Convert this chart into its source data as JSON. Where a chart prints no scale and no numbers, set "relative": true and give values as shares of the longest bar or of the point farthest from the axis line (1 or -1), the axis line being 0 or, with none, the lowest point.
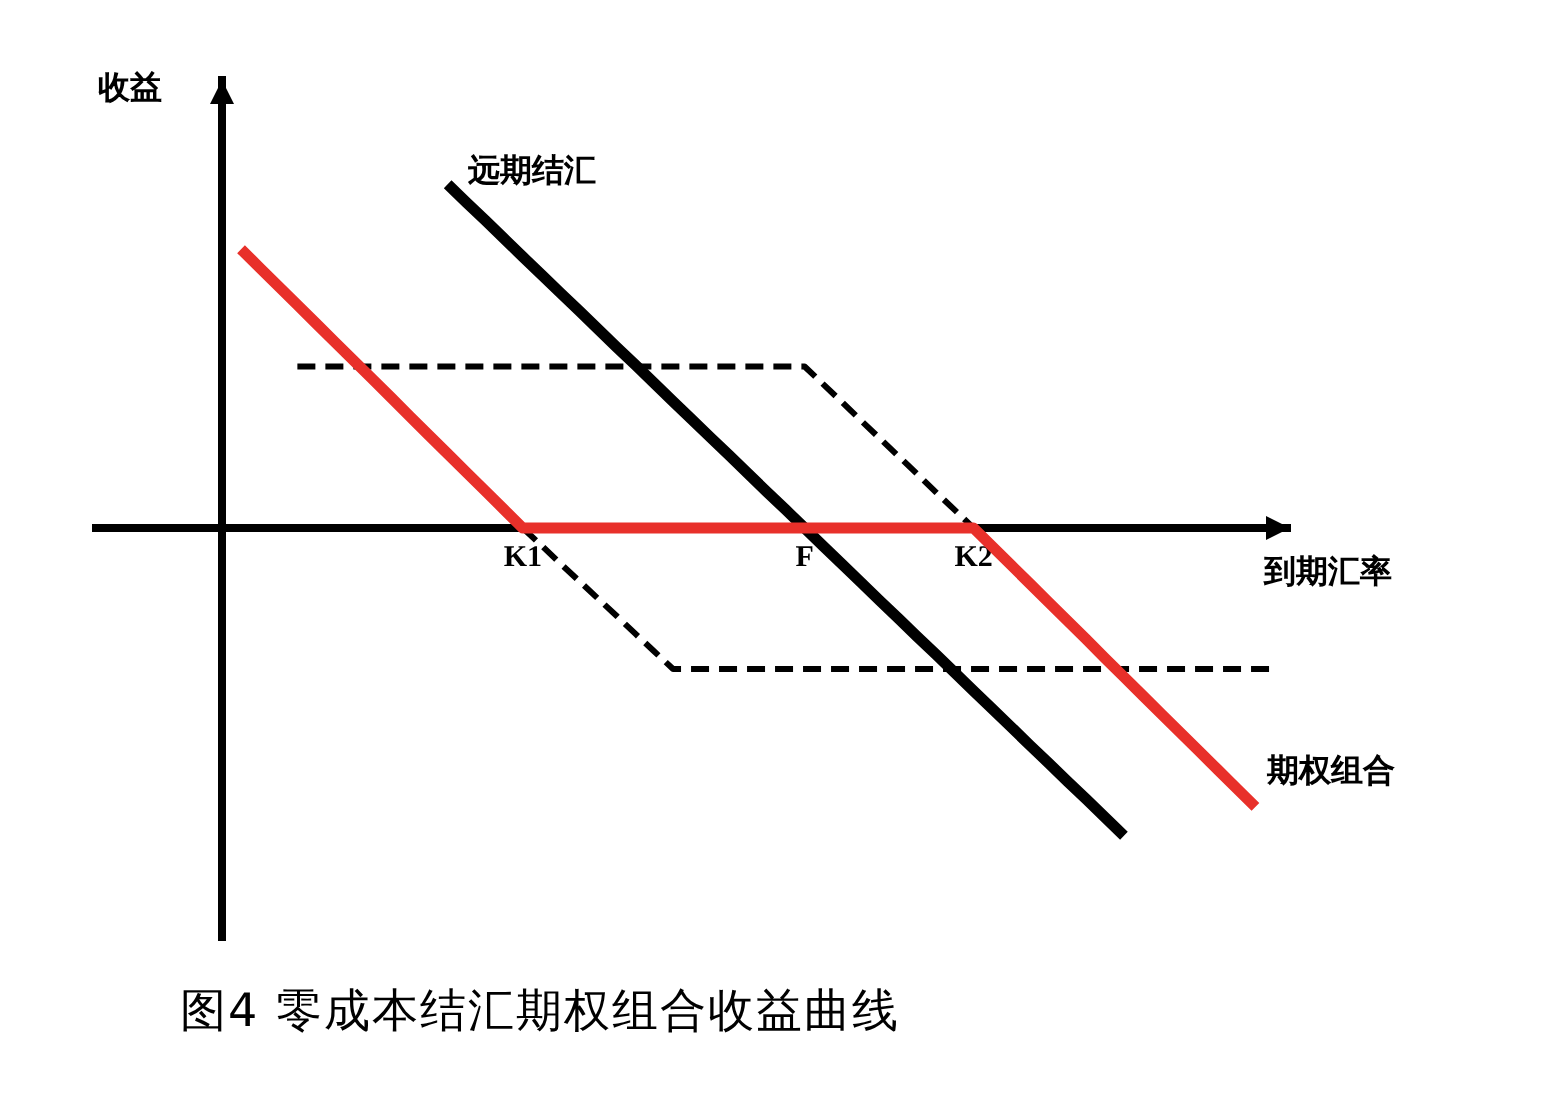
{
  "chart_data": {
    "type": "line",
    "title": "图4 零成本结汇期权组合收益曲线",
    "xlabel": "到期汇率",
    "ylabel": "收益",
    "relative": true,
    "categories": [
      null,
      null,
      null,
      null,
      null,
      null,
      null,
      null,
      null,
      null,
      null,
      null,
      null,
      null,
      null,
      null,
      "K1",
      null,
      null,
      null,
      null,
      null,
      null,
      null,
      null,
      null,
      null,
      null,
      null,
      null,
      null,
      "F",
      null,
      null,
      null,
      null,
      null,
      null,
      null,
      null,
      "K2",
      null,
      null,
      null,
      null,
      null,
      null,
      null,
      null,
      null,
      null,
      null,
      null,
      null,
      null,
      null,
      null
    ],
    "series": [
      {
        "name": "期权组合",
        "color": "#e8302a",
        "line_style": "solid",
        "values": [
          null,
          0.811,
          0.757,
          0.703,
          0.649,
          0.595,
          0.541,
          0.487,
          0.433,
          0.379,
          0.324,
          0.27,
          0.216,
          0.162,
          0.108,
          0.054,
          0,
          0,
          0,
          0,
          0,
          0,
          0,
          0,
          0,
          0,
          0,
          0,
          0,
          0,
          0,
          0,
          0,
          0,
          0,
          0,
          0,
          0,
          0,
          0,
          0,
          -0.054,
          -0.108,
          -0.162,
          -0.216,
          -0.27,
          -0.324,
          -0.379,
          -0.433,
          -0.487,
          -0.541,
          -0.595,
          -0.649,
          -0.703,
          -0.757,
          -0.811,
          null
        ]
      },
      {
        "name": "远期结汇",
        "color": "#000000",
        "line_style": "solid",
        "values": [
          null,
          null,
          null,
          null,
          null,
          null,
          null,
          null,
          null,
          null,
          null,
          null,
          1,
          0.947,
          0.895,
          0.842,
          0.789,
          0.737,
          0.684,
          0.632,
          0.579,
          0.526,
          0.474,
          0.421,
          0.368,
          0.316,
          0.263,
          0.211,
          0.158,
          0.105,
          0.053,
          0,
          -0.053,
          -0.105,
          -0.158,
          -0.211,
          -0.263,
          -0.316,
          -0.368,
          -0.421,
          -0.474,
          -0.526,
          -0.579,
          -0.632,
          -0.684,
          -0.737,
          -0.789,
          -0.842,
          -0.895,
          null,
          null,
          null,
          null,
          null,
          null,
          null,
          null
        ]
      },
      {
        "color": "#000000",
        "line_style": "dashed",
        "values": [
          null,
          null,
          null,
          null,
          0.47,
          0.47,
          0.47,
          0.47,
          0.47,
          0.47,
          0.47,
          0.47,
          0.47,
          0.47,
          0.47,
          0.47,
          0.47,
          0.47,
          0.47,
          0.47,
          0.47,
          0.47,
          0.47,
          0.47,
          0.47,
          0.47,
          0.47,
          0.47,
          0.47,
          0.47,
          0.47,
          0.47,
          0.418,
          0.366,
          0.313,
          0.261,
          0.209,
          0.157,
          0.104,
          0.052,
          0,
          null,
          null,
          null,
          null,
          null,
          null,
          null,
          null,
          null,
          null,
          null,
          null,
          null,
          null,
          null,
          null
        ]
      },
      {
        "color": "#000000",
        "line_style": "dashed",
        "values": [
          null,
          null,
          null,
          null,
          null,
          null,
          null,
          null,
          null,
          null,
          null,
          null,
          null,
          null,
          null,
          null,
          0,
          -0.051,
          -0.103,
          -0.154,
          -0.205,
          -0.256,
          -0.308,
          -0.359,
          -0.41,
          -0.41,
          -0.41,
          -0.41,
          -0.41,
          -0.41,
          -0.41,
          -0.41,
          -0.41,
          -0.41,
          -0.41,
          -0.41,
          -0.41,
          -0.41,
          -0.41,
          -0.41,
          -0.41,
          -0.41,
          -0.41,
          -0.41,
          -0.41,
          -0.41,
          -0.41,
          -0.41,
          -0.41,
          -0.41,
          -0.41,
          -0.41,
          -0.41,
          -0.41,
          -0.41,
          -0.41,
          -0.41
        ]
      }
    ],
    "legend": false,
    "grid": false,
    "tick_labels": "x",
    "marker": "none"
  }
}
